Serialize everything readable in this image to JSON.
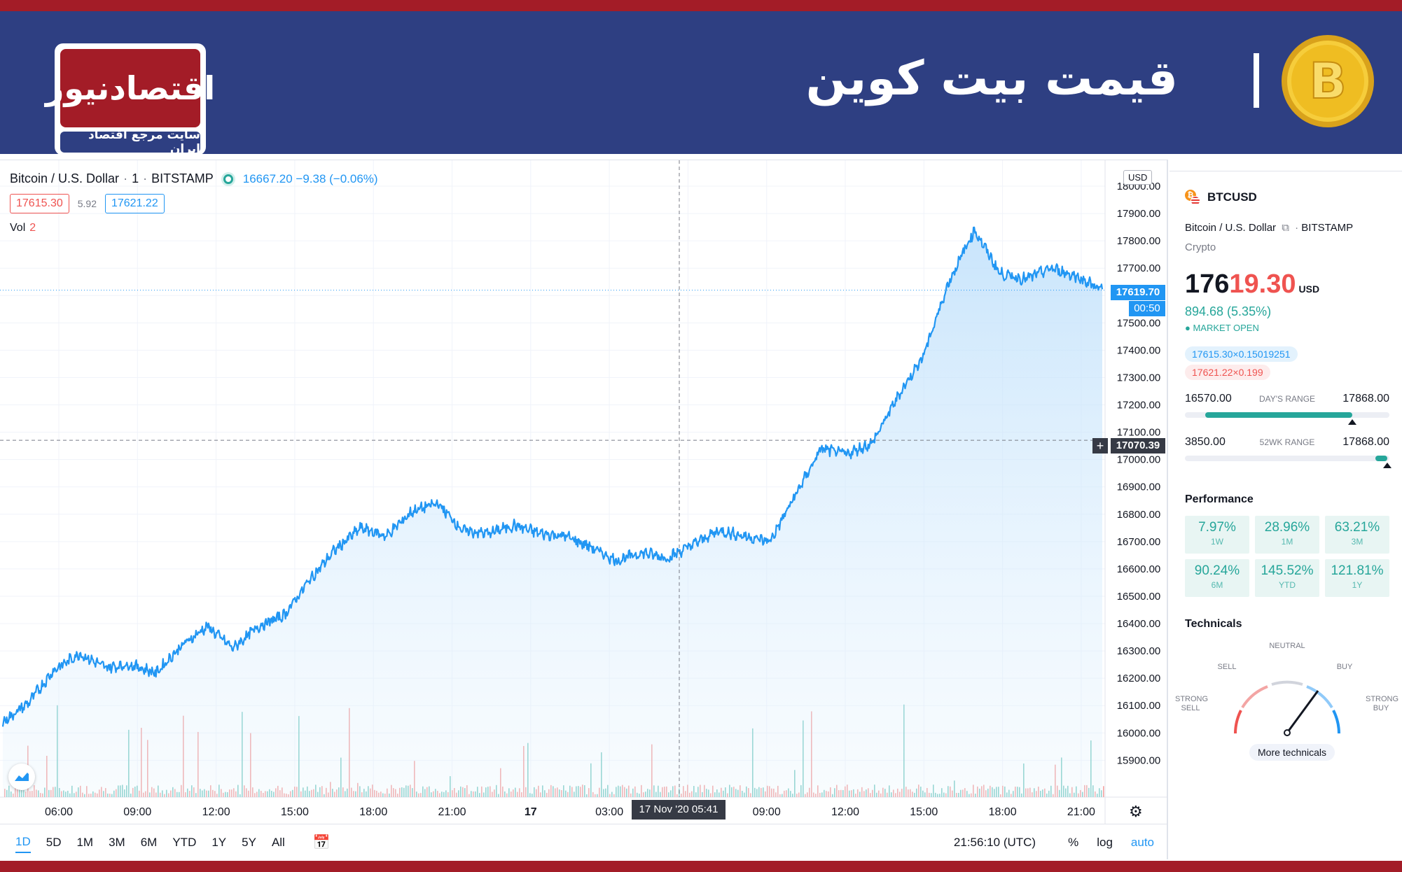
{
  "banner": {
    "title": "قیمت بیت کوین",
    "logo_text": "اقتصادنیوز",
    "logo_tagline": "سایت مرجع اقتصاد ایران",
    "coin_icon": "bitcoin-coin-icon"
  },
  "chart": {
    "symbol_name": "Bitcoin / U.S. Dollar",
    "interval": "1",
    "exchange": "BITSTAMP",
    "legend_values": "16667.20 −9.38 (−0.06%)",
    "bid": "17615.30",
    "spread": "5.92",
    "ask": "17621.22",
    "vol_label": "Vol",
    "vol_value": "2",
    "currency": "USD",
    "last_price_tag": "17619.70",
    "countdown": "00:50",
    "crosshair_price": "17070.39",
    "crosshair_time": "17 Nov '20   05:41",
    "colors": {
      "line": "#2196f3",
      "up": "#26a69a",
      "down": "#ef5350",
      "bg": "#ffffff"
    }
  },
  "chart_data": {
    "type": "area",
    "title": "",
    "xlabel": "",
    "ylabel": "",
    "ylim": [
      15860,
      18000
    ],
    "y_ticks": [
      "18000.00",
      "17900.00",
      "17800.00",
      "17700.00",
      "17600.00",
      "17500.00",
      "17400.00",
      "17300.00",
      "17200.00",
      "17100.00",
      "17000.00",
      "16900.00",
      "16800.00",
      "16700.00",
      "16600.00",
      "16500.00",
      "16400.00",
      "16300.00",
      "16200.00",
      "16100.00",
      "16000.00",
      "15900.00"
    ],
    "x_ticks": [
      "06:00",
      "09:00",
      "12:00",
      "15:00",
      "18:00",
      "21:00",
      "17",
      "03:00",
      "06:00",
      "09:00",
      "12:00",
      "15:00",
      "18:00",
      "21:00"
    ],
    "series": [
      {
        "x": [
          "04:00",
          "05:00",
          "06:00",
          "07:00",
          "08:00",
          "09:00",
          "10:00",
          "11:00",
          "12:00",
          "13:00",
          "14:00",
          "15:00",
          "16:00",
          "17:00",
          "18:00",
          "19:00",
          "20:00",
          "21:00",
          "22:00",
          "23:00",
          "00:00",
          "01:00",
          "02:00",
          "03:00",
          "04:00",
          "05:00",
          "06:00",
          "07:00",
          "08:00",
          "09:00",
          "10:00",
          "11:00",
          "12:00",
          "13:00",
          "14:00",
          "15:00",
          "16:00",
          "17:00",
          "17:30",
          "18:00",
          "19:00",
          "20:00",
          "21:00",
          "22:00"
        ],
        "values": [
          16040,
          16110,
          16230,
          16290,
          16240,
          16250,
          16220,
          16320,
          16390,
          16310,
          16390,
          16430,
          16560,
          16670,
          16750,
          16720,
          16810,
          16840,
          16740,
          16730,
          16760,
          16730,
          16720,
          16680,
          16630,
          16660,
          16640,
          16690,
          16740,
          16720,
          16700,
          16870,
          17040,
          17020,
          17060,
          17230,
          17380,
          17650,
          17840,
          17680,
          17660,
          17700,
          17670,
          17620
        ]
      }
    ],
    "grid": true,
    "legend": "none"
  },
  "toolbar": {
    "ranges": [
      "1D",
      "5D",
      "1M",
      "3M",
      "6M",
      "YTD",
      "1Y",
      "5Y",
      "All"
    ],
    "active_range": "1D",
    "clock": "21:56:10 (UTC)",
    "percent": "%",
    "log": "log",
    "auto": "auto"
  },
  "side": {
    "symbol": "BTCUSD",
    "name": "Bitcoin / U.S. Dollar",
    "exchange": "BITSTAMP",
    "category": "Crypto",
    "price_main": "176",
    "price_hi": "19.30",
    "price_currency": "USD",
    "change": "894.68 (5.35%)",
    "market_status": "MARKET OPEN",
    "bid_chip": "17615.30×0.15019251",
    "ask_chip": "17621.22×0.199",
    "days_range": {
      "label": "DAY'S RANGE",
      "low": "16570.00",
      "high": "17868.00",
      "position": 0.82
    },
    "wk52_range": {
      "label": "52WK RANGE",
      "low": "3850.00",
      "high": "17868.00",
      "position": 0.99
    },
    "performance_title": "Performance",
    "performance": [
      {
        "value": "7.97%",
        "label": "1W"
      },
      {
        "value": "28.96%",
        "label": "1M"
      },
      {
        "value": "63.21%",
        "label": "3M"
      },
      {
        "value": "90.24%",
        "label": "6M"
      },
      {
        "value": "145.52%",
        "label": "YTD"
      },
      {
        "value": "121.81%",
        "label": "1Y"
      }
    ],
    "technicals_title": "Technicals",
    "gauge_labels": {
      "strong_sell": "STRONG SELL",
      "sell": "SELL",
      "neutral": "NEUTRAL",
      "buy": "BUY",
      "strong_buy": "STRONG BUY"
    },
    "more_technicals": "More technicals"
  }
}
